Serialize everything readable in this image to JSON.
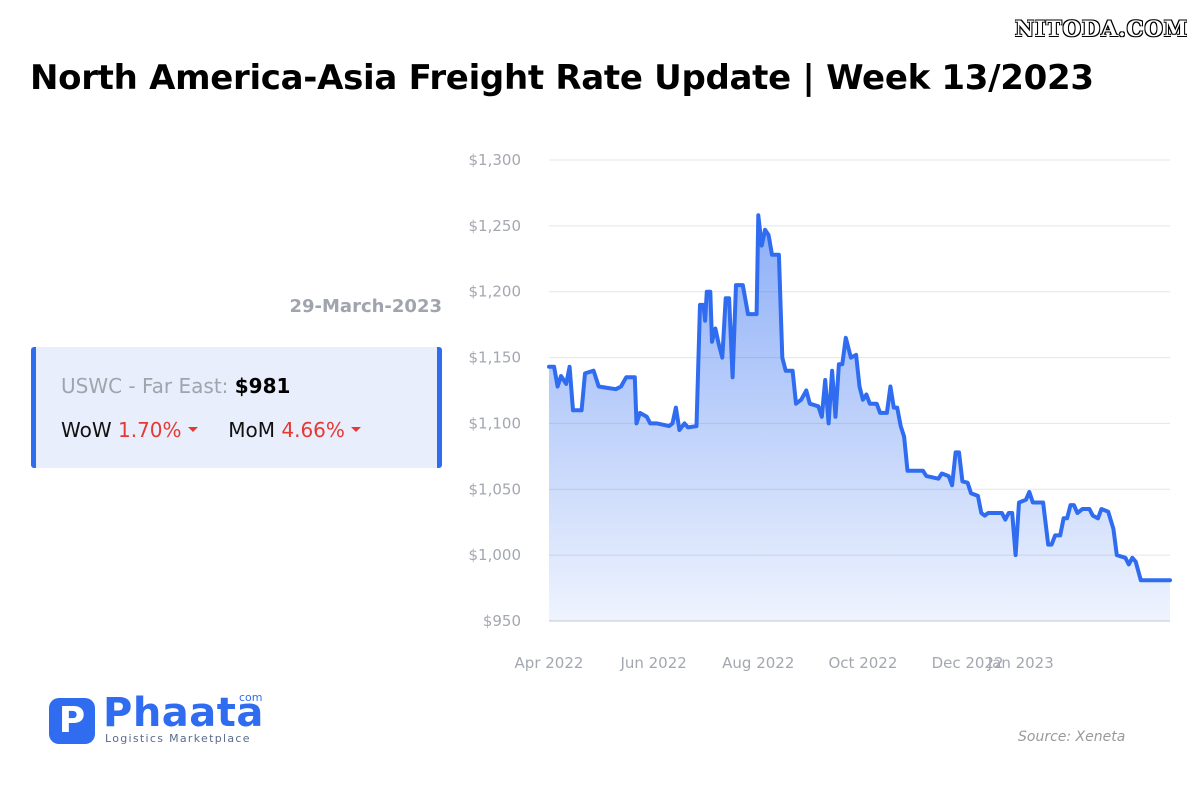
{
  "watermark": "NITODA.COM",
  "title": "North America-Asia Freight Rate Update | Week 13/2023",
  "date_label": "29-March-2023",
  "stat_card": {
    "route": "USWC - Far East:",
    "value": "$981",
    "wow_label": "WoW",
    "wow_value": "1.70%",
    "mom_label": "MoM",
    "mom_value": "4.66%"
  },
  "logo": {
    "badge_letter": "P",
    "word": "Phaata",
    "dotcom": "com",
    "tagline": "Logistics Marketplace"
  },
  "source": "Source: Xeneta",
  "colors": {
    "line": "#2f6cf0",
    "down": "#e53935",
    "card_bg": "#e8eefc"
  },
  "chart_data": {
    "type": "area",
    "title": "",
    "xlabel": "",
    "ylabel": "",
    "ylim": [
      950,
      1300
    ],
    "y_ticks": [
      1300,
      1250,
      1200,
      1150,
      1100,
      1050,
      1000,
      950
    ],
    "y_tick_labels": [
      "$1,300",
      "$1,250",
      "$1,200",
      "$1,150",
      "$1,100",
      "$1,050",
      "$1,000",
      "$950"
    ],
    "xlim": [
      "2022-04-01",
      "2023-03-29"
    ],
    "x_ticks": [
      "2022-04-01",
      "2022-06-01",
      "2022-08-01",
      "2022-10-01",
      "2022-12-01",
      "2023-01-01"
    ],
    "x_tick_labels": [
      "Apr 2022",
      "Jun 2022",
      "Aug 2022",
      "Oct 2022",
      "Dec 2022",
      "Jan 2023"
    ],
    "grid": true,
    "series": [
      {
        "values": [
          [
            "2022-04-01",
            1143
          ],
          [
            "2022-04-04",
            1143
          ],
          [
            "2022-04-06",
            1128
          ],
          [
            "2022-04-08",
            1136
          ],
          [
            "2022-04-11",
            1130
          ],
          [
            "2022-04-13",
            1143
          ],
          [
            "2022-04-15",
            1110
          ],
          [
            "2022-04-20",
            1110
          ],
          [
            "2022-04-22",
            1138
          ],
          [
            "2022-04-27",
            1140
          ],
          [
            "2022-04-30",
            1128
          ],
          [
            "2022-05-05",
            1127
          ],
          [
            "2022-05-10",
            1126
          ],
          [
            "2022-05-13",
            1128
          ],
          [
            "2022-05-16",
            1135
          ],
          [
            "2022-05-21",
            1135
          ],
          [
            "2022-05-22",
            1100
          ],
          [
            "2022-05-24",
            1108
          ],
          [
            "2022-05-28",
            1105
          ],
          [
            "2022-05-30",
            1100
          ],
          [
            "2022-06-03",
            1100
          ],
          [
            "2022-06-10",
            1098
          ],
          [
            "2022-06-12",
            1100
          ],
          [
            "2022-06-14",
            1112
          ],
          [
            "2022-06-16",
            1095
          ],
          [
            "2022-06-19",
            1100
          ],
          [
            "2022-06-21",
            1097
          ],
          [
            "2022-06-26",
            1098
          ],
          [
            "2022-06-28",
            1190
          ],
          [
            "2022-06-30",
            1190
          ],
          [
            "2022-07-01",
            1178
          ],
          [
            "2022-07-02",
            1200
          ],
          [
            "2022-07-04",
            1200
          ],
          [
            "2022-07-05",
            1162
          ],
          [
            "2022-07-07",
            1172
          ],
          [
            "2022-07-09",
            1160
          ],
          [
            "2022-07-11",
            1150
          ],
          [
            "2022-07-13",
            1195
          ],
          [
            "2022-07-15",
            1195
          ],
          [
            "2022-07-17",
            1135
          ],
          [
            "2022-07-19",
            1205
          ],
          [
            "2022-07-23",
            1205
          ],
          [
            "2022-07-26",
            1183
          ],
          [
            "2022-07-31",
            1183
          ],
          [
            "2022-08-01",
            1258
          ],
          [
            "2022-08-03",
            1235
          ],
          [
            "2022-08-05",
            1247
          ],
          [
            "2022-08-07",
            1243
          ],
          [
            "2022-08-09",
            1228
          ],
          [
            "2022-08-13",
            1228
          ],
          [
            "2022-08-15",
            1150
          ],
          [
            "2022-08-17",
            1140
          ],
          [
            "2022-08-21",
            1140
          ],
          [
            "2022-08-23",
            1115
          ],
          [
            "2022-08-26",
            1118
          ],
          [
            "2022-08-29",
            1125
          ],
          [
            "2022-08-31",
            1115
          ],
          [
            "2022-09-05",
            1113
          ],
          [
            "2022-09-07",
            1105
          ],
          [
            "2022-09-09",
            1133
          ],
          [
            "2022-09-11",
            1100
          ],
          [
            "2022-09-13",
            1140
          ],
          [
            "2022-09-15",
            1105
          ],
          [
            "2022-09-17",
            1145
          ],
          [
            "2022-09-19",
            1145
          ],
          [
            "2022-09-21",
            1165
          ],
          [
            "2022-09-24",
            1150
          ],
          [
            "2022-09-27",
            1152
          ],
          [
            "2022-09-29",
            1128
          ],
          [
            "2022-10-01",
            1118
          ],
          [
            "2022-10-03",
            1122
          ],
          [
            "2022-10-05",
            1115
          ],
          [
            "2022-10-09",
            1115
          ],
          [
            "2022-10-11",
            1108
          ],
          [
            "2022-10-15",
            1108
          ],
          [
            "2022-10-17",
            1128
          ],
          [
            "2022-10-19",
            1112
          ],
          [
            "2022-10-21",
            1112
          ],
          [
            "2022-10-23",
            1098
          ],
          [
            "2022-10-25",
            1090
          ],
          [
            "2022-10-27",
            1064
          ],
          [
            "2022-11-05",
            1064
          ],
          [
            "2022-11-07",
            1060
          ],
          [
            "2022-11-14",
            1058
          ],
          [
            "2022-11-16",
            1062
          ],
          [
            "2022-11-20",
            1060
          ],
          [
            "2022-11-22",
            1053
          ],
          [
            "2022-11-24",
            1078
          ],
          [
            "2022-11-26",
            1078
          ],
          [
            "2022-11-28",
            1056
          ],
          [
            "2022-12-01",
            1055
          ],
          [
            "2022-12-03",
            1047
          ],
          [
            "2022-12-07",
            1045
          ],
          [
            "2022-12-09",
            1032
          ],
          [
            "2022-12-11",
            1030
          ],
          [
            "2022-12-13",
            1032
          ],
          [
            "2022-12-21",
            1032
          ],
          [
            "2022-12-23",
            1027
          ],
          [
            "2022-12-25",
            1032
          ],
          [
            "2022-12-27",
            1032
          ],
          [
            "2022-12-29",
            1000
          ],
          [
            "2022-12-31",
            1040
          ],
          [
            "2023-01-04",
            1042
          ],
          [
            "2023-01-06",
            1048
          ],
          [
            "2023-01-08",
            1040
          ],
          [
            "2023-01-14",
            1040
          ],
          [
            "2023-01-17",
            1008
          ],
          [
            "2023-01-19",
            1008
          ],
          [
            "2023-01-21",
            1015
          ],
          [
            "2023-01-24",
            1015
          ],
          [
            "2023-01-26",
            1028
          ],
          [
            "2023-01-28",
            1028
          ],
          [
            "2023-01-30",
            1038
          ],
          [
            "2023-02-01",
            1038
          ],
          [
            "2023-02-03",
            1032
          ],
          [
            "2023-02-06",
            1035
          ],
          [
            "2023-02-10",
            1035
          ],
          [
            "2023-02-12",
            1030
          ],
          [
            "2023-02-15",
            1028
          ],
          [
            "2023-02-17",
            1035
          ],
          [
            "2023-02-21",
            1033
          ],
          [
            "2023-02-24",
            1020
          ],
          [
            "2023-02-26",
            1000
          ],
          [
            "2023-03-03",
            998
          ],
          [
            "2023-03-05",
            993
          ],
          [
            "2023-03-07",
            998
          ],
          [
            "2023-03-09",
            995
          ],
          [
            "2023-03-12",
            981
          ],
          [
            "2023-03-29",
            981
          ]
        ]
      }
    ]
  }
}
